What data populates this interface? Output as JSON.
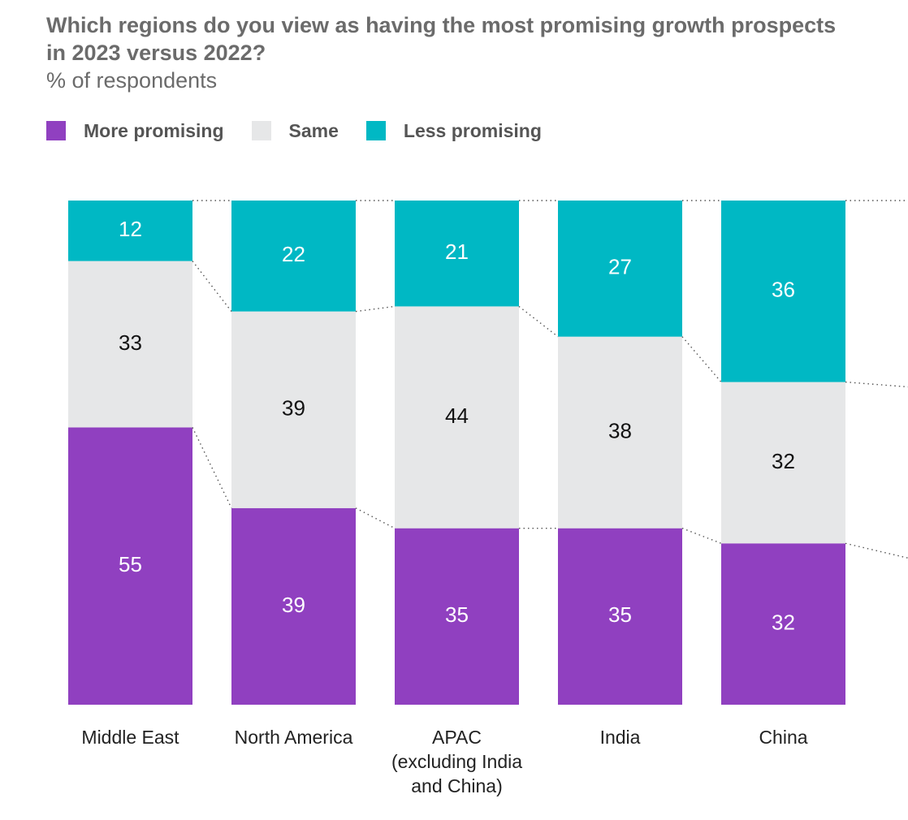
{
  "title": "Which regions do you view as having the most promising growth prospects in 2023 versus 2022?",
  "subtitle": "% of respondents",
  "colors": {
    "more_promising": "#9040c0",
    "same": "#e6e7e8",
    "less_promising": "#00b8c4",
    "connector": "#555555"
  },
  "legend": [
    {
      "label": "More promising",
      "color": "#9040c0"
    },
    {
      "label": "Same",
      "color": "#e6e7e8"
    },
    {
      "label": "Less promising",
      "color": "#00b8c4"
    }
  ],
  "chart_data": {
    "type": "bar",
    "stacked": true,
    "categories": [
      [
        "Middle East"
      ],
      [
        "North America"
      ],
      [
        "APAC",
        "(excluding India",
        "and China)"
      ],
      [
        "India"
      ],
      [
        "China"
      ]
    ],
    "series": [
      {
        "name": "More promising",
        "values": [
          55,
          39,
          35,
          35,
          32
        ]
      },
      {
        "name": "Same",
        "values": [
          33,
          39,
          44,
          38,
          32
        ]
      },
      {
        "name": "Less promising",
        "values": [
          12,
          22,
          21,
          27,
          36
        ]
      }
    ],
    "ylim": [
      0,
      100
    ],
    "xlabel": "",
    "ylabel": "",
    "legend_position": "top-left"
  }
}
